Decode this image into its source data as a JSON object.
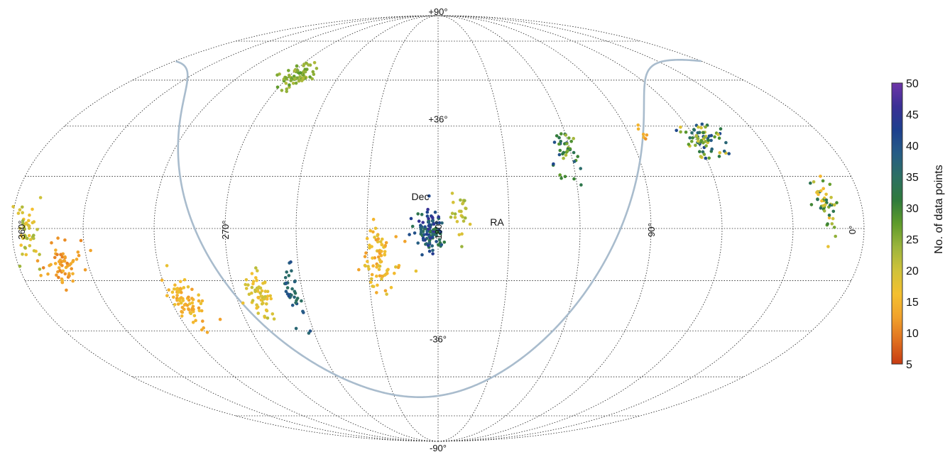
{
  "chart_data": {
    "type": "scatter",
    "projection": "mollweide",
    "title": "",
    "xlabel": "RA",
    "ylabel": "Dec",
    "x_direction": "RA increases to the left (360° at left edge, 0° at right edge)",
    "ra_tick_labels": [
      "360°",
      "270°",
      "180°",
      "90°",
      "0°"
    ],
    "dec_tick_labels": [
      "+90°",
      "+36°",
      "-36°",
      "-90°"
    ],
    "grid": true,
    "galactic_plane_curve": {
      "color": "#a9bccd"
    },
    "colorbar": {
      "label": "No. of data points",
      "ticks": [
        "50",
        "45",
        "40",
        "35",
        "30",
        "25",
        "20",
        "15",
        "10",
        "5"
      ],
      "range": [
        5,
        50
      ],
      "colormap": [
        "#c63b12",
        "#e0701f",
        "#f1a22c",
        "#f4c02f",
        "#cfc23a",
        "#9cb53c",
        "#5e9b2b",
        "#2f7a3c",
        "#2c6f63",
        "#265c86",
        "#1d3f8e",
        "#3a2f95",
        "#6e35a8"
      ]
    },
    "clusters": [
      {
        "ra": 265,
        "dec": 56,
        "ra_spread": 9,
        "dec_spread": 5,
        "count": 70,
        "color_min": 22,
        "color_max": 28
      },
      {
        "ra": 354,
        "dec": -2,
        "ra_spread": 5,
        "dec_spread": 9,
        "count": 45,
        "color_min": 16,
        "color_max": 24
      },
      {
        "ra": 341,
        "dec": -12,
        "ra_spread": 7,
        "dec_spread": 7,
        "count": 60,
        "color_min": 10,
        "color_max": 15
      },
      {
        "ra": 293,
        "dec": -25,
        "ra_spread": 6,
        "dec_spread": 8,
        "count": 75,
        "color_min": 12,
        "color_max": 18
      },
      {
        "ra": 259,
        "dec": -24,
        "ra_spread": 5,
        "dec_spread": 9,
        "count": 60,
        "color_min": 15,
        "color_max": 22
      },
      {
        "ra": 244,
        "dec": -22,
        "ra_spread": 4,
        "dec_spread": 9,
        "count": 35,
        "color_min": 34,
        "color_max": 41
      },
      {
        "ra": 205,
        "dec": -10,
        "ra_spread": 7,
        "dec_spread": 10,
        "count": 80,
        "color_min": 12,
        "color_max": 19
      },
      {
        "ra": 183,
        "dec": -1,
        "ra_spread": 6,
        "dec_spread": 7,
        "count": 110,
        "color_min": 30,
        "color_max": 46
      },
      {
        "ra": 170,
        "dec": 5,
        "ra_spread": 4,
        "dec_spread": 7,
        "count": 25,
        "color_min": 18,
        "color_max": 24
      },
      {
        "ra": 122,
        "dec": 28,
        "ra_spread": 6,
        "dec_spread": 7,
        "count": 40,
        "color_min": 22,
        "color_max": 42
      },
      {
        "ra": 84,
        "dec": 33,
        "ra_spread": 4,
        "dec_spread": 3,
        "count": 6,
        "color_min": 11,
        "color_max": 15
      },
      {
        "ra": 56,
        "dec": 31,
        "ra_spread": 9,
        "dec_spread": 6,
        "count": 70,
        "color_min": 18,
        "color_max": 42
      },
      {
        "ra": 15,
        "dec": 8,
        "ra_spread": 5,
        "dec_spread": 8,
        "count": 45,
        "color_min": 14,
        "color_max": 36
      }
    ]
  }
}
